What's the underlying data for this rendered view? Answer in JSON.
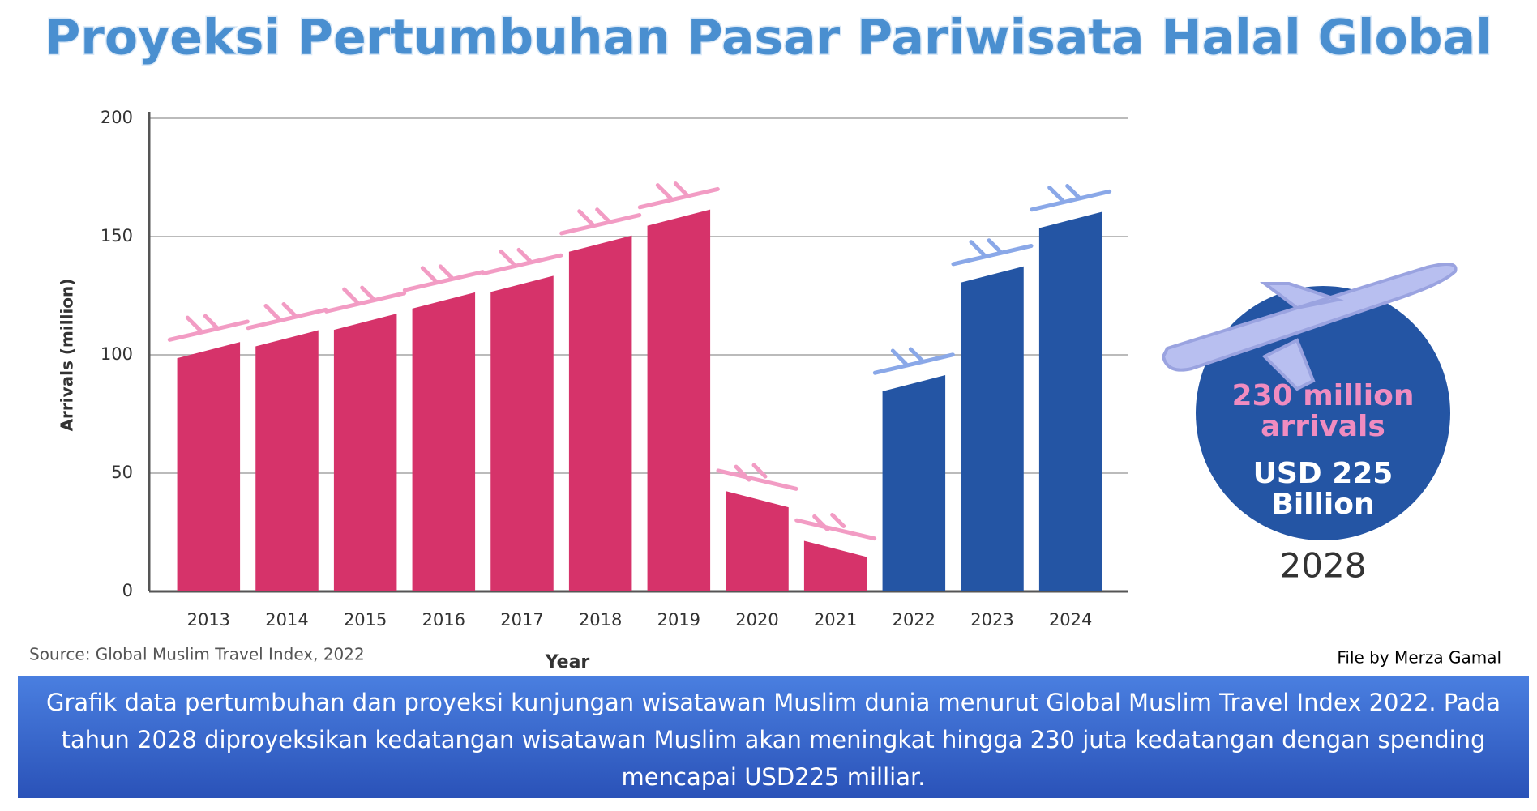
{
  "chart_data": {
    "type": "bar",
    "title": "Proyeksi Pertumbuhan Pasar Pariwisata Halal Global",
    "categories": [
      "2013",
      "2014",
      "2015",
      "2016",
      "2017",
      "2018",
      "2019",
      "2020",
      "2021",
      "2022",
      "2023",
      "2024"
    ],
    "values": [
      102,
      107,
      114,
      123,
      130,
      147,
      158,
      39,
      18,
      88,
      134,
      157
    ],
    "colors": [
      "#d6336a",
      "#d6336a",
      "#d6336a",
      "#d6336a",
      "#d6336a",
      "#d6336a",
      "#d6336a",
      "#d6336a",
      "#d6336a",
      "#2455a4",
      "#2455a4",
      "#2455a4"
    ],
    "ylim": [
      0,
      200
    ],
    "yticks": [
      0,
      50,
      100,
      150,
      200
    ],
    "grid": true,
    "x_label": "Year",
    "y_label": "Arrivals (million)",
    "annotation": {
      "arrivals": [
        "230 million",
        "arrivals"
      ],
      "spending": [
        "USD 225",
        "Billion"
      ],
      "year": "2028"
    },
    "source": "Source: Global Muslim Travel Index, 2022",
    "credit": "File by Merza Gamal",
    "caption": "Grafik data pertumbuhan dan proyeksi kunjungan wisatawan Muslim dunia menurut Global Muslim Travel Index 2022. Pada tahun 2028 diproyeksikan kedatangan wisatawan Muslim akan meningkat hingga 230 juta kedatangan dengan spending mencapai USD225 milliar."
  }
}
